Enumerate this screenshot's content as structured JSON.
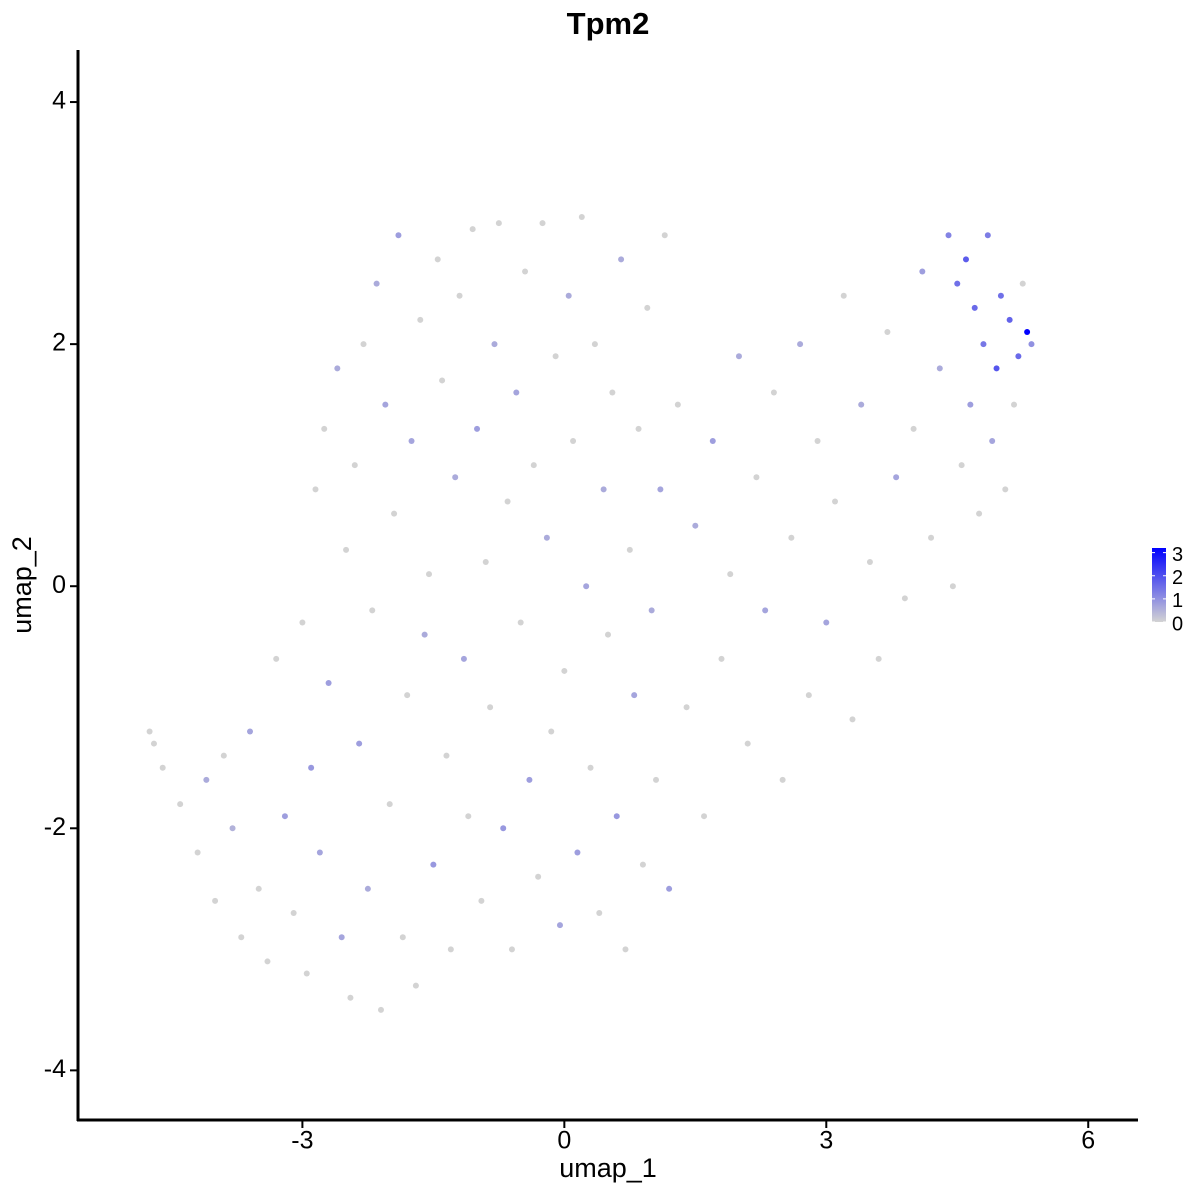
{
  "chart_data": {
    "type": "scatter",
    "title": "Tpm2",
    "x_label": "umap_1",
    "y_label": "umap_2",
    "xlim": [
      -5.57,
      6.57
    ],
    "ylim": [
      -4.41,
      4.43
    ],
    "xticks": [
      -3,
      0,
      3,
      6
    ],
    "yticks": [
      -4,
      -2,
      0,
      2,
      4
    ],
    "color_scale": {
      "low": "#d3d3d3",
      "high": "#0000ff",
      "limits": [
        0,
        3.2
      ],
      "ticks": [
        0,
        1,
        2,
        3
      ]
    },
    "x": [
      -4.7,
      -4.75,
      -4.6,
      -4.4,
      -4.2,
      -4.1,
      -4.0,
      -3.9,
      -3.8,
      -3.7,
      -3.6,
      -3.5,
      -3.4,
      -3.3,
      -3.2,
      -3.1,
      -3.0,
      -2.95,
      -2.9,
      -2.85,
      -2.8,
      -2.75,
      -2.7,
      -2.6,
      -2.55,
      -2.5,
      -2.45,
      -2.4,
      -2.35,
      -2.3,
      -2.25,
      -2.2,
      -2.15,
      -2.1,
      -2.05,
      -2.0,
      -1.95,
      -1.9,
      -1.85,
      -1.8,
      -1.75,
      -1.7,
      -1.65,
      -1.6,
      -1.55,
      -1.5,
      -1.45,
      -1.4,
      -1.35,
      -1.3,
      -1.25,
      -1.2,
      -1.15,
      -1.1,
      -1.05,
      -1.0,
      -0.95,
      -0.9,
      -0.85,
      -0.8,
      -0.75,
      -0.7,
      -0.65,
      -0.6,
      -0.55,
      -0.5,
      -0.45,
      -0.4,
      -0.35,
      -0.3,
      -0.25,
      -0.2,
      -0.15,
      -0.1,
      -0.05,
      0.0,
      0.05,
      0.1,
      0.15,
      0.2,
      0.25,
      0.3,
      0.35,
      0.4,
      0.45,
      0.5,
      0.55,
      0.6,
      0.65,
      0.7,
      0.75,
      0.8,
      0.85,
      0.9,
      0.95,
      1.0,
      1.05,
      1.1,
      1.15,
      1.2,
      1.3,
      1.4,
      1.5,
      1.6,
      1.7,
      1.8,
      1.9,
      2.0,
      2.1,
      2.2,
      2.3,
      2.4,
      2.5,
      2.6,
      2.7,
      2.8,
      2.9,
      3.0,
      3.1,
      3.2,
      3.3,
      3.4,
      3.5,
      3.6,
      3.7,
      3.8,
      3.9,
      4.0,
      4.1,
      4.2,
      4.3,
      4.4,
      4.45,
      4.5,
      4.55,
      4.6,
      4.65,
      4.7,
      4.75,
      4.8,
      4.85,
      4.9,
      4.95,
      5.0,
      5.05,
      5.1,
      5.15,
      5.2,
      5.25,
      5.3,
      5.35
    ],
    "y": [
      -1.3,
      -1.2,
      -1.5,
      -1.8,
      -2.2,
      -1.6,
      -2.6,
      -1.4,
      -2.0,
      -2.9,
      -1.2,
      -2.5,
      -3.1,
      -0.6,
      -1.9,
      -2.7,
      -0.3,
      -3.2,
      -1.5,
      0.8,
      -2.2,
      1.3,
      -0.8,
      1.8,
      -2.9,
      0.3,
      -3.4,
      1.0,
      -1.3,
      2.0,
      -2.5,
      -0.2,
      2.5,
      -3.5,
      1.5,
      -1.8,
      0.6,
      2.9,
      -2.9,
      -0.9,
      1.2,
      -3.3,
      2.2,
      -0.4,
      0.1,
      -2.3,
      2.7,
      1.7,
      -1.4,
      -3.0,
      0.9,
      2.4,
      -0.6,
      -1.9,
      2.95,
      1.3,
      -2.6,
      0.2,
      -1.0,
      2.0,
      3.0,
      -2.0,
      0.7,
      -3.0,
      1.6,
      -0.3,
      2.6,
      -1.6,
      1.0,
      -2.4,
      3.0,
      0.4,
      -1.2,
      1.9,
      -2.8,
      -0.7,
      2.4,
      1.2,
      -2.2,
      3.05,
      0.0,
      -1.5,
      2.0,
      -2.7,
      0.8,
      -0.4,
      1.6,
      -1.9,
      2.7,
      -3.0,
      0.3,
      -0.9,
      1.3,
      -2.3,
      2.3,
      -0.2,
      -1.6,
      0.8,
      2.9,
      -2.5,
      1.5,
      -1.0,
      0.5,
      -1.9,
      1.2,
      -0.6,
      0.1,
      1.9,
      -1.3,
      0.9,
      -0.2,
      1.6,
      -1.6,
      0.4,
      2.0,
      -0.9,
      1.2,
      -0.3,
      0.7,
      2.4,
      -1.1,
      1.5,
      0.2,
      -0.6,
      2.1,
      0.9,
      -0.1,
      1.3,
      2.6,
      0.4,
      1.8,
      2.9,
      0.0,
      2.5,
      1.0,
      2.7,
      1.5,
      2.3,
      0.6,
      2.0,
      2.9,
      1.2,
      1.8,
      2.4,
      0.8,
      2.2,
      1.5,
      1.9,
      2.5,
      2.1,
      2.0
    ],
    "values": [
      0,
      0,
      0,
      0,
      0,
      0.6,
      0,
      0,
      0.5,
      0,
      0.7,
      0,
      0,
      0,
      0.8,
      0,
      0,
      0,
      0.9,
      0,
      0.7,
      0,
      0.8,
      0.6,
      0.7,
      0,
      0,
      0,
      0.8,
      0,
      0.6,
      0,
      0.6,
      0,
      0.7,
      0,
      0,
      0.8,
      0,
      0,
      0.7,
      0,
      0,
      0.6,
      0,
      0.9,
      0,
      0,
      0,
      0,
      0.6,
      0,
      0.7,
      0,
      0,
      0.8,
      0,
      0,
      0,
      0.6,
      0,
      0.9,
      0,
      0,
      0.7,
      0,
      0,
      0.8,
      0,
      0,
      0,
      0.6,
      0,
      0,
      0.7,
      0,
      0.6,
      0,
      0.8,
      0,
      0.7,
      0,
      0,
      0,
      0.6,
      0,
      0,
      0.9,
      0.6,
      0,
      0,
      0.7,
      0,
      0,
      0,
      0.6,
      0,
      0.7,
      0,
      0.8,
      0,
      0,
      0.6,
      0,
      0.8,
      0,
      0,
      0.6,
      0,
      0,
      0.7,
      0,
      0,
      0,
      0.6,
      0,
      0,
      0.7,
      0,
      0,
      0,
      0.6,
      0,
      0,
      0,
      0.7,
      0,
      0,
      0.8,
      0,
      0.6,
      1.2,
      0,
      1.5,
      0,
      1.8,
      0.8,
      1.6,
      0,
      1.4,
      1.3,
      0.7,
      1.9,
      1.5,
      0,
      1.7,
      0,
      1.6,
      0,
      3.2,
      1.0
    ]
  }
}
